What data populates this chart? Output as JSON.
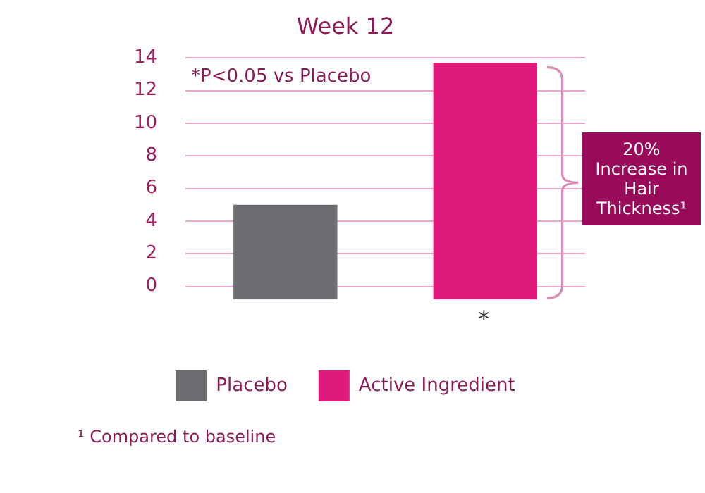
{
  "chart_data": {
    "type": "bar",
    "title": "Week 12",
    "categories": [
      null,
      null
    ],
    "series": [
      {
        "name": "Placebo",
        "color": "#6d6e71",
        "values": [
          5.8,
          null
        ],
        "base": [
          -0.8,
          null
        ]
      },
      {
        "name": "Active Ingredient",
        "color": "#e0197d",
        "values": [
          null,
          14.5
        ],
        "base": [
          null,
          -0.8
        ]
      }
    ],
    "ylim": [
      -0.8,
      14
    ],
    "yticks": [
      0,
      2,
      4,
      6,
      8,
      10,
      12,
      14
    ],
    "grid": "y",
    "legend": "bottom",
    "annotations": [
      "*P<0.05 vs Placebo",
      "20% Increase in Hair Thickness¹",
      "*",
      "¹ Compared to baseline"
    ]
  }
}
